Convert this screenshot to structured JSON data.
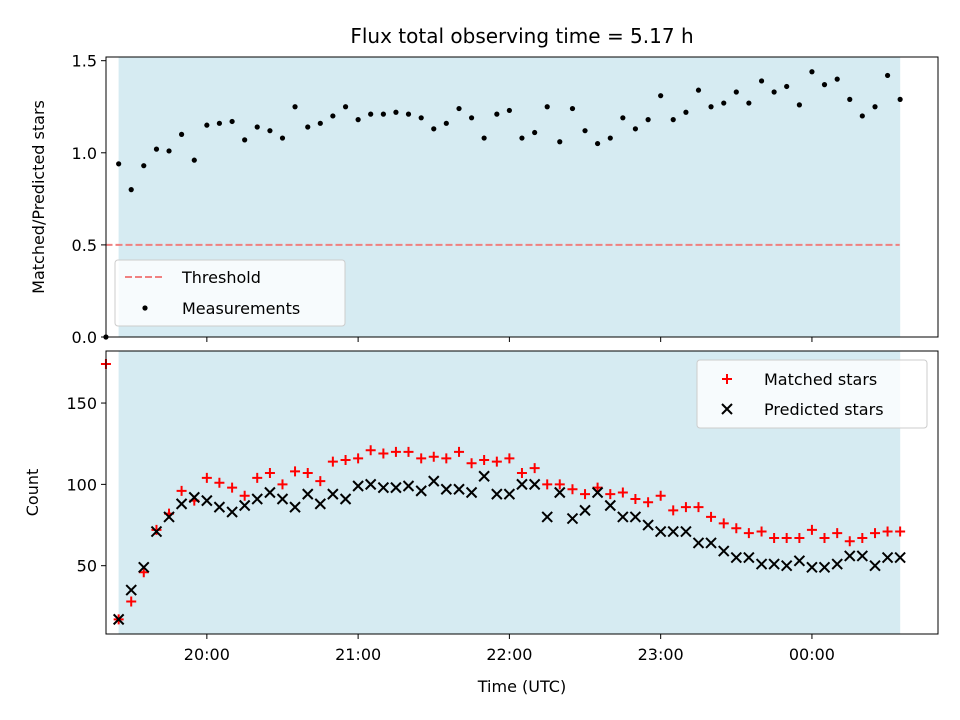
{
  "chart_data": {
    "title": "Flux total observing time = 5.17 h",
    "xlabel": "Time (UTC)",
    "x_unit": "hours UTC (values past 24 are after midnight)",
    "xlim": [
      "19:20",
      "00:50"
    ],
    "observing_window": [
      "19:25",
      "00:35"
    ],
    "shade_color": "#add8e6",
    "x_ticks": [
      "20:00",
      "21:00",
      "22:00",
      "23:00",
      "00:00"
    ],
    "panels": [
      {
        "type": "scatter",
        "ylabel": "Matched/Predicted stars",
        "ylim": [
          0,
          1.52
        ],
        "y_ticks": [
          "0.0",
          "0.5",
          "1.0",
          "1.5"
        ],
        "legend": {
          "position": "lower-left",
          "entries": [
            "Threshold",
            "Measurements"
          ]
        },
        "threshold": {
          "name": "Threshold",
          "value": 0.5,
          "x_range": [
            19.33,
            24.58
          ],
          "color": "#f08080"
        },
        "series": [
          {
            "name": "Measurements",
            "color": "#000000",
            "x": [
              19.333,
              19.417,
              19.5,
              19.583,
              19.667,
              19.75,
              19.833,
              19.917,
              20.0,
              20.083,
              20.167,
              20.25,
              20.333,
              20.417,
              20.5,
              20.583,
              20.667,
              20.75,
              20.833,
              20.917,
              21.0,
              21.083,
              21.167,
              21.25,
              21.333,
              21.417,
              21.5,
              21.583,
              21.667,
              21.75,
              21.833,
              21.917,
              22.0,
              22.083,
              22.167,
              22.25,
              22.333,
              22.417,
              22.5,
              22.583,
              22.667,
              22.75,
              22.833,
              22.917,
              23.0,
              23.083,
              23.167,
              23.25,
              23.333,
              23.417,
              23.5,
              23.583,
              23.667,
              23.75,
              23.833,
              23.917,
              24.0,
              24.083,
              24.167,
              24.25,
              24.333,
              24.417,
              24.5,
              24.583
            ],
            "y": [
              0.0,
              0.94,
              0.8,
              0.93,
              1.02,
              1.01,
              1.1,
              0.96,
              1.15,
              1.16,
              1.17,
              1.07,
              1.14,
              1.12,
              1.08,
              1.25,
              1.14,
              1.16,
              1.2,
              1.25,
              1.18,
              1.21,
              1.21,
              1.22,
              1.21,
              1.19,
              1.13,
              1.16,
              1.24,
              1.19,
              1.08,
              1.21,
              1.23,
              1.08,
              1.11,
              1.25,
              1.06,
              1.24,
              1.12,
              1.05,
              1.08,
              1.19,
              1.13,
              1.18,
              1.31,
              1.18,
              1.22,
              1.34,
              1.25,
              1.27,
              1.33,
              1.27,
              1.39,
              1.33,
              1.36,
              1.26,
              1.44,
              1.37,
              1.4,
              1.29,
              1.2,
              1.25,
              1.42,
              1.29
            ]
          }
        ]
      },
      {
        "type": "scatter",
        "ylabel": "Count",
        "ylim": [
          8,
          182
        ],
        "y_ticks": [
          "50",
          "100",
          "150"
        ],
        "legend": {
          "position": "top-right",
          "entries": [
            "Matched stars",
            "Predicted stars"
          ]
        },
        "series": [
          {
            "name": "Matched stars",
            "marker": "+",
            "color": "#ff0000",
            "x": [
              19.333,
              19.417,
              19.5,
              19.583,
              19.667,
              19.75,
              19.833,
              19.917,
              20.0,
              20.083,
              20.167,
              20.25,
              20.333,
              20.417,
              20.5,
              20.583,
              20.667,
              20.75,
              20.833,
              20.917,
              21.0,
              21.083,
              21.167,
              21.25,
              21.333,
              21.417,
              21.5,
              21.583,
              21.667,
              21.75,
              21.833,
              21.917,
              22.0,
              22.083,
              22.167,
              22.25,
              22.333,
              22.417,
              22.5,
              22.583,
              22.667,
              22.75,
              22.833,
              22.917,
              23.0,
              23.083,
              23.167,
              23.25,
              23.333,
              23.417,
              23.5,
              23.583,
              23.667,
              23.75,
              23.833,
              23.917,
              24.0,
              24.083,
              24.167,
              24.25,
              24.333,
              24.417,
              24.5,
              24.583
            ],
            "y": [
              174,
              17,
              28,
              46,
              72,
              82,
              96,
              90,
              104,
              101,
              98,
              93,
              104,
              107,
              100,
              108,
              107,
              102,
              114,
              115,
              116,
              121,
              119,
              120,
              120,
              116,
              117,
              116,
              120,
              113,
              115,
              114,
              116,
              107,
              110,
              100,
              100,
              97,
              94,
              98,
              94,
              95,
              91,
              89,
              93,
              84,
              86,
              86,
              80,
              76,
              73,
              70,
              71,
              67,
              67,
              67,
              72,
              67,
              70,
              65,
              67,
              70,
              71,
              71
            ]
          },
          {
            "name": "Predicted stars",
            "marker": "x",
            "color": "#000000",
            "x": [
              19.417,
              19.5,
              19.583,
              19.667,
              19.75,
              19.833,
              19.917,
              20.0,
              20.083,
              20.167,
              20.25,
              20.333,
              20.417,
              20.5,
              20.583,
              20.667,
              20.75,
              20.833,
              20.917,
              21.0,
              21.083,
              21.167,
              21.25,
              21.333,
              21.417,
              21.5,
              21.583,
              21.667,
              21.75,
              21.833,
              21.917,
              22.0,
              22.083,
              22.167,
              22.25,
              22.333,
              22.417,
              22.5,
              22.583,
              22.667,
              22.75,
              22.833,
              22.917,
              23.0,
              23.083,
              23.167,
              23.25,
              23.333,
              23.417,
              23.5,
              23.583,
              23.667,
              23.75,
              23.833,
              23.917,
              24.0,
              24.083,
              24.167,
              24.25,
              24.333,
              24.417,
              24.5,
              24.583
            ],
            "y": [
              17,
              35,
              49,
              71,
              80,
              88,
              92,
              90,
              86,
              83,
              87,
              91,
              95,
              91,
              86,
              94,
              88,
              94,
              91,
              99,
              100,
              98,
              98,
              99,
              96,
              102,
              97,
              97,
              95,
              105,
              94,
              94,
              100,
              100,
              80,
              95,
              79,
              84,
              95,
              87,
              80,
              80,
              75,
              71,
              71,
              71,
              64,
              64,
              59,
              55,
              55,
              51,
              51,
              50,
              53,
              49,
              49,
              51,
              56,
              56,
              50,
              55,
              55
            ]
          }
        ]
      }
    ]
  }
}
